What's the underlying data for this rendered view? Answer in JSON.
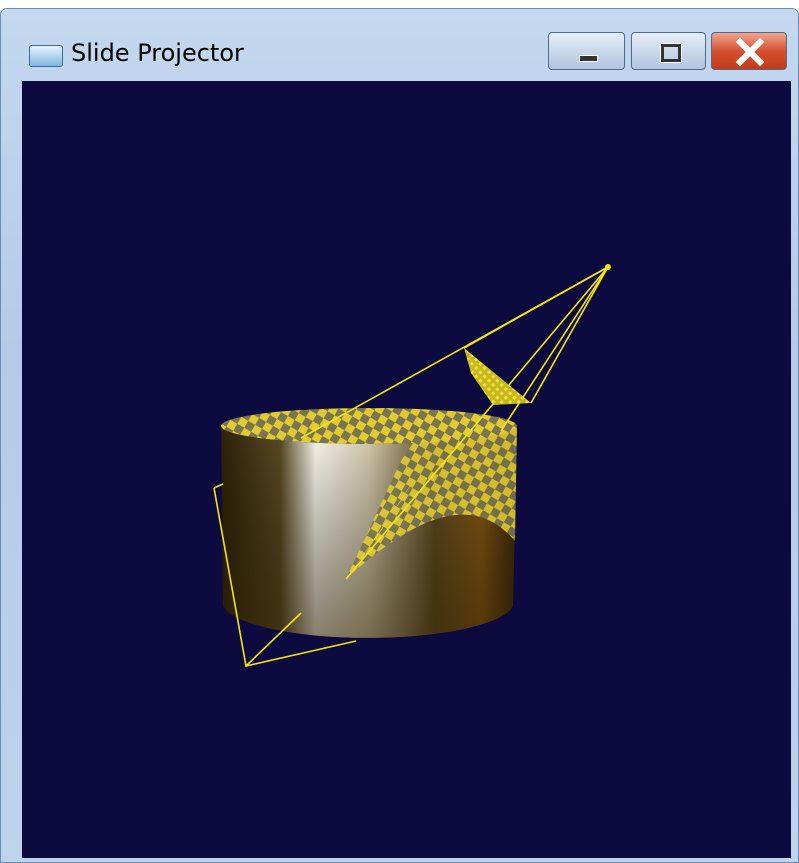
{
  "window": {
    "title": "Slide Projector"
  }
}
